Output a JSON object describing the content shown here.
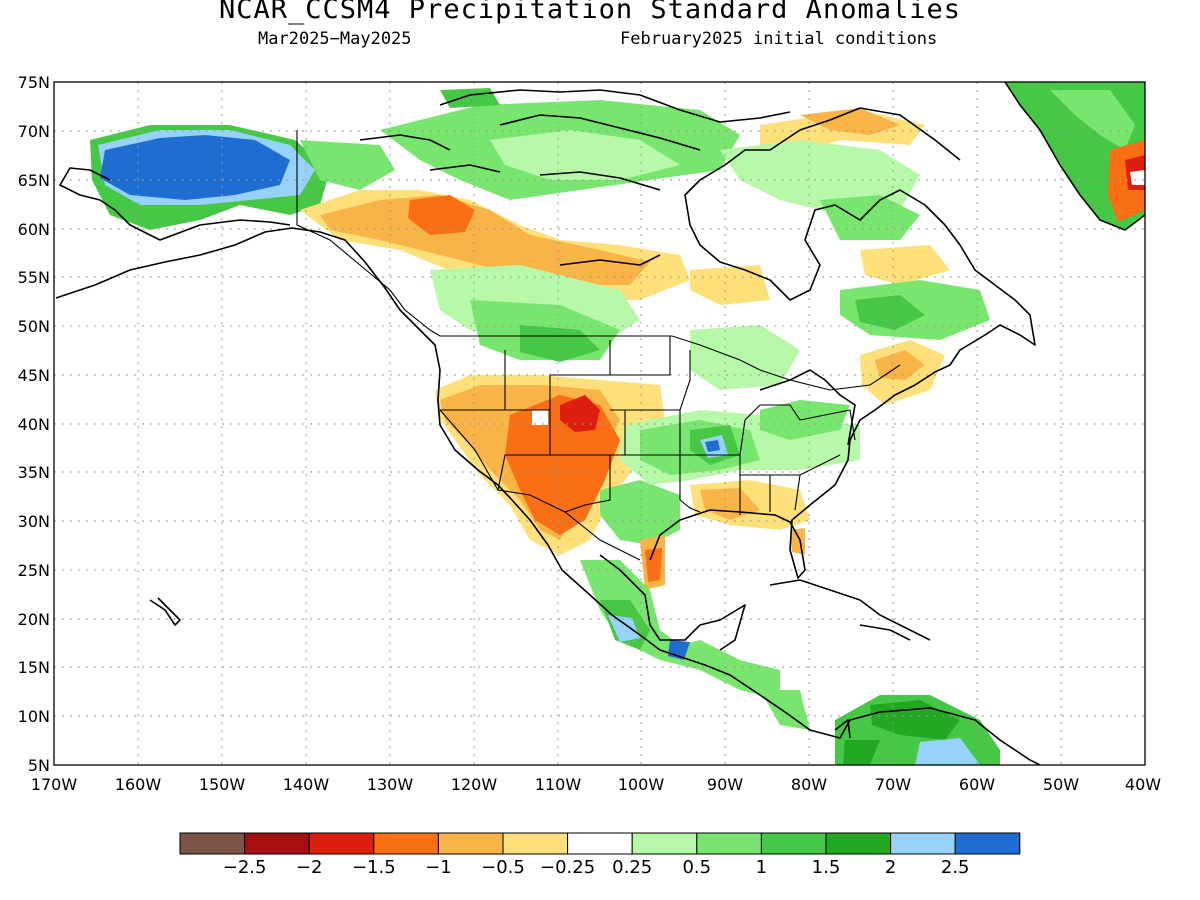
{
  "title": "NCAR_CCSM4 Precipitation Standard Anomalies",
  "subtitle_left": "Mar2025−May2025",
  "subtitle_right": "February2025 initial conditions",
  "lat_labels": [
    "75N",
    "70N",
    "65N",
    "60N",
    "55N",
    "50N",
    "45N",
    "40N",
    "35N",
    "30N",
    "25N",
    "20N",
    "15N",
    "10N",
    "5N"
  ],
  "lon_labels": [
    "170W",
    "160W",
    "150W",
    "140W",
    "130W",
    "120W",
    "110W",
    "100W",
    "90W",
    "80W",
    "70W",
    "60W",
    "50W",
    "40W"
  ],
  "colorbar": {
    "colors": [
      "#7d5547",
      "#a50f0f",
      "#de1e0f",
      "#fa6e14",
      "#f9b447",
      "#fde07a",
      "#ffffff",
      "#b7f7a8",
      "#78e66e",
      "#46c846",
      "#23a823",
      "#96d2fa",
      "#1e6ed2"
    ],
    "labels": [
      "−2.5",
      "−2",
      "−1.5",
      "−1",
      "−0.5",
      "−0.25",
      "0.25",
      "0.5",
      "1",
      "1.5",
      "2",
      "2.5"
    ]
  }
}
